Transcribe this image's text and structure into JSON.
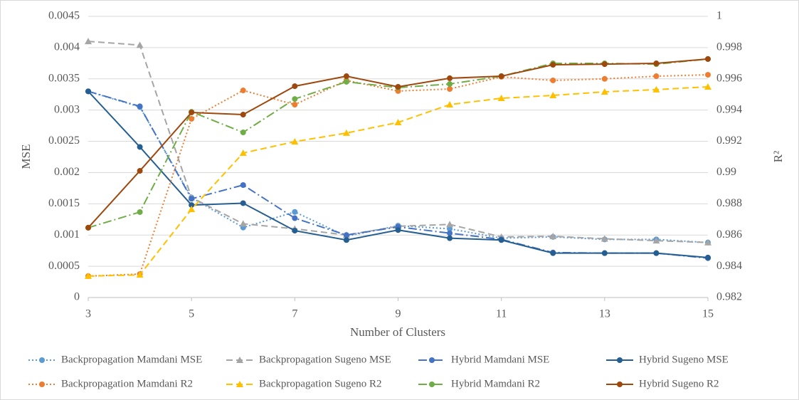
{
  "chart_data": {
    "type": "line",
    "x_label": "Number of Clusters",
    "y_label": "MSE",
    "y2_label": "R²",
    "x": [
      3,
      4,
      5,
      6,
      7,
      8,
      9,
      10,
      11,
      12,
      13,
      14,
      15
    ],
    "xlim": [
      3,
      15
    ],
    "xticks": [
      3,
      5,
      7,
      9,
      11,
      13,
      15
    ],
    "ylim": [
      0,
      0.0045
    ],
    "yticks": [
      0,
      0.0005,
      0.001,
      0.0015,
      0.002,
      0.0025,
      0.003,
      0.0035,
      0.004,
      0.0045
    ],
    "y2lim": [
      0.982,
      1
    ],
    "y2ticks": [
      0.982,
      0.984,
      0.986,
      0.988,
      0.99,
      0.992,
      0.994,
      0.996,
      0.998,
      1
    ],
    "grid": true,
    "legend": "bottom",
    "series": [
      {
        "name": "Backpropagation Mamdani MSE",
        "color": "#5b9bd5",
        "dash": "dot",
        "marker": "circle",
        "axis": "y",
        "values": [
          0.0033,
          0.00305,
          0.0016,
          0.00112,
          0.00137,
          0.00098,
          0.00115,
          0.0011,
          0.00095,
          0.00097,
          0.00093,
          0.00093,
          0.00088
        ]
      },
      {
        "name": "Backpropagation Sugeno MSE",
        "color": "#a5a5a5",
        "dash": "dash",
        "marker": "triangle",
        "axis": "y",
        "values": [
          0.0041,
          0.00404,
          0.0016,
          0.00118,
          0.0011,
          0.001,
          0.00114,
          0.00117,
          0.00097,
          0.00098,
          0.00094,
          0.00091,
          0.00088
        ]
      },
      {
        "name": "Hybrid Mamdani MSE",
        "color": "#4472c4",
        "dash": "dashdot",
        "marker": "circle",
        "axis": "y",
        "values": [
          0.0033,
          0.00306,
          0.00158,
          0.0018,
          0.00127,
          0.001,
          0.00113,
          0.00103,
          0.00093,
          0.00072,
          0.00071,
          0.00071,
          0.00063
        ]
      },
      {
        "name": "Hybrid Sugeno MSE",
        "color": "#255e91",
        "dash": "solid",
        "marker": "circle",
        "axis": "y",
        "values": [
          0.0033,
          0.00241,
          0.00148,
          0.00151,
          0.00107,
          0.00092,
          0.00108,
          0.00095,
          0.00092,
          0.00071,
          0.00071,
          0.00071,
          0.00064
        ]
      },
      {
        "name": "Backpropagation Mamdani R2",
        "color": "#ed7d31",
        "dash": "dot",
        "marker": "circle",
        "axis": "y2",
        "values": [
          0.98337,
          0.9835,
          0.99344,
          0.99526,
          0.99435,
          0.9959,
          0.99522,
          0.99535,
          0.99613,
          0.9959,
          0.996,
          0.99617,
          0.99626
        ]
      },
      {
        "name": "Backpropagation Sugeno R2",
        "color": "#ffc000",
        "dash": "dash",
        "marker": "triangle",
        "axis": "y2",
        "values": [
          0.98337,
          0.98345,
          0.98765,
          0.99125,
          0.99198,
          0.99253,
          0.99321,
          0.99435,
          0.99476,
          0.99494,
          0.99517,
          0.99531,
          0.99549
        ]
      },
      {
        "name": "Hybrid Mamdani R2",
        "color": "#70ad47",
        "dash": "dashdot",
        "marker": "circle",
        "axis": "y2",
        "values": [
          0.98647,
          0.98747,
          0.99389,
          0.99257,
          0.99471,
          0.99581,
          0.99544,
          0.99567,
          0.99617,
          0.99699,
          0.99699,
          0.99694,
          0.99727
        ]
      },
      {
        "name": "Hybrid Sugeno R2",
        "color": "#9e480e",
        "dash": "solid",
        "marker": "circle",
        "axis": "y2",
        "values": [
          0.98647,
          0.99011,
          0.99385,
          0.99371,
          0.99553,
          0.99617,
          0.99549,
          0.99604,
          0.99617,
          0.9969,
          0.99694,
          0.99699,
          0.99727
        ]
      }
    ]
  }
}
